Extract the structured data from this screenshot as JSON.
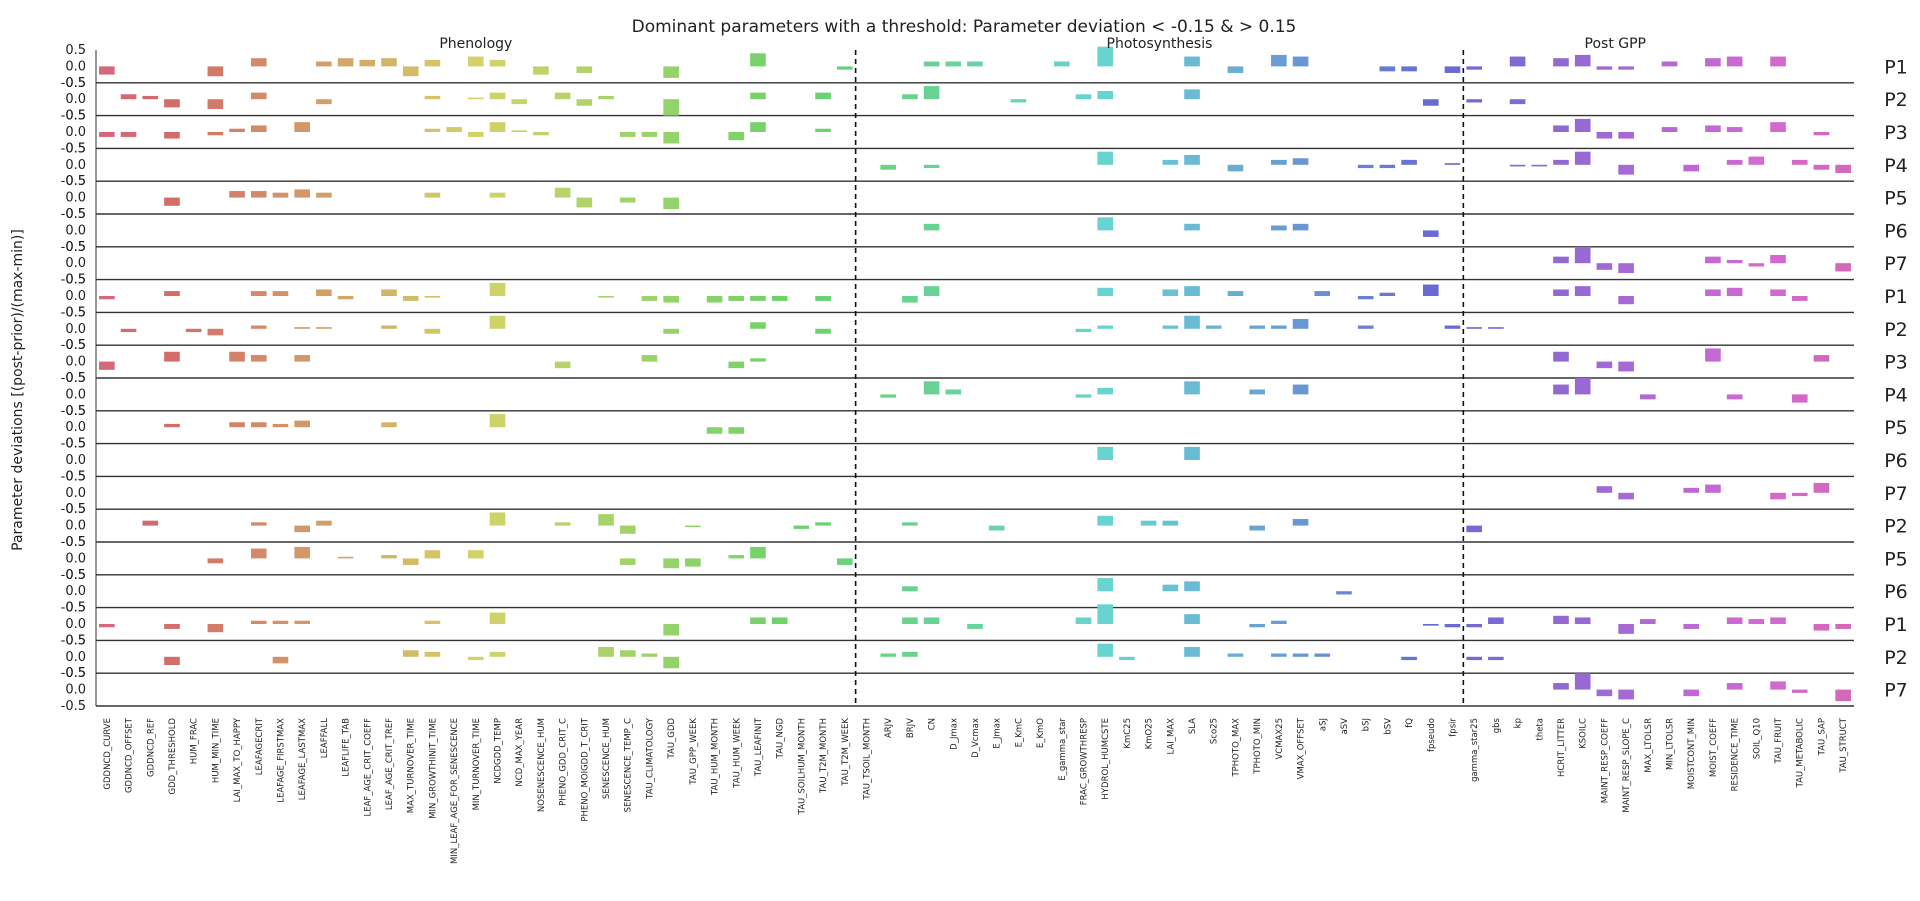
{
  "chart_data": {
    "type": "bar",
    "title": "Dominant parameters with a threshold: Parameter deviation < -0.15 & > 0.15",
    "ylabel": "Parameter deviations [(post-prior)/(max-min)]",
    "xlabel": "",
    "ylim": [
      -0.5,
      0.5
    ],
    "yticks": [
      "0.5",
      "0.0",
      "-0.5"
    ],
    "groups": [
      {
        "name": "Phenology",
        "start": 0,
        "end": 34
      },
      {
        "name": "Photosynthesis",
        "start": 35,
        "end": 62
      },
      {
        "name": "Post GPP",
        "start": 63,
        "end": 76
      }
    ],
    "categories": [
      "GDDNCD_CURVE",
      "GDDNCD_OFFSET",
      "GDDNCD_REF",
      "GDD_THRESHOLD",
      "HUM_FRAC",
      "HUM_MIN_TIME",
      "LAI_MAX_TO_HAPPY",
      "LEAFAGECRIT",
      "LEAFAGE_FIRSTMAX",
      "LEAFAGE_LASTMAX",
      "LEAFFALL",
      "LEAFLIFE_TAB",
      "LEAF_AGE_CRIT_COEFF",
      "LEAF_AGE_CRIT_TREF",
      "MAX_TURNOVER_TIME",
      "MIN_GROWTHINIT_TIME",
      "MIN_LEAF_AGE_FOR_SENESCENCE",
      "MIN_TURNOVER_TIME",
      "NCDGDD_TEMP",
      "NCD_MAX_YEAR",
      "NOSENESCENCE_HUM",
      "PHENO_GDD_CRIT_C",
      "PHENO_MOIGDD_T_CRIT",
      "SENESCENCE_HUM",
      "SENESCENCE_TEMP_C",
      "TAU_CLIMATOLOGY",
      "TAU_GDD",
      "TAU_GPP_WEEK",
      "TAU_HUM_MONTH",
      "TAU_HUM_WEEK",
      "TAU_LEAFINIT",
      "TAU_NGD",
      "TAU_SOILHUM_MONTH",
      "TAU_T2M_MONTH",
      "TAU_T2M_WEEK",
      "TAU_TSOIL_MONTH",
      "ARJV",
      "BRJV",
      "CN",
      "D_Jmax",
      "D_Vcmax",
      "E_Jmax",
      "E_KmC",
      "E_KmO",
      "E_gamma_star",
      "FRAC_GROWTHRESP",
      "HYDROL_HUMCSTE",
      "KmC25",
      "KmO25",
      "LAI_MAX",
      "SLA",
      "Sco25",
      "TPHOTO_MAX",
      "TPHOTO_MIN",
      "VCMAX25",
      "VMAX_OFFSET",
      "aSJ",
      "aSV",
      "bSJ",
      "bSV",
      "fQ",
      "fpseudo",
      "fpsir",
      "gamma_star25",
      "gbs",
      "kp",
      "theta",
      "HCRIT_LITTER",
      "KSOILC",
      "MAINT_RESP_COEFF",
      "MAINT_RESP_SLOPE_C",
      "MAX_LTOLSR",
      "MIN_LTOLSR",
      "MOISTCONT_MIN",
      "MOIST_COEFF",
      "RESIDENCE_TIME",
      "SOIL_Q10",
      "TAU_FRUIT",
      "TAU_METABOLIC",
      "TAU_SAP",
      "TAU_STRUCT"
    ],
    "series": [
      {
        "name": "P1",
        "values": {
          "0": -0.25,
          "5": -0.3,
          "7": 0.25,
          "10": 0.15,
          "11": 0.25,
          "12": 0.2,
          "13": 0.25,
          "14": -0.3,
          "15": 0.2,
          "17": 0.3,
          "18": 0.2,
          "20": -0.25,
          "22": -0.2,
          "26": -0.35,
          "30": 0.4,
          "34": -0.1,
          "38": 0.15,
          "39": 0.15,
          "40": 0.15,
          "44": 0.15,
          "46": 0.6,
          "50": 0.3,
          "52": -0.2,
          "54": 0.35,
          "55": 0.3,
          "59": -0.15,
          "60": -0.15,
          "62": -0.2,
          "63": -0.1,
          "65": 0.3,
          "67": 0.25,
          "68": 0.35,
          "69": -0.1,
          "70": -0.1,
          "72": 0.15,
          "74": 0.25,
          "75": 0.3,
          "77": 0.3
        }
      },
      {
        "name": "P2",
        "values": {
          "1": 0.15,
          "2": 0.1,
          "3": -0.25,
          "5": -0.3,
          "7": 0.2,
          "10": -0.15,
          "15": 0.1,
          "17": 0.05,
          "18": 0.2,
          "19": -0.15,
          "21": 0.2,
          "22": -0.2,
          "23": 0.1,
          "26": -0.5,
          "30": 0.2,
          "33": 0.2,
          "37": 0.15,
          "38": 0.4,
          "42": -0.1,
          "45": 0.15,
          "46": 0.25,
          "50": 0.3,
          "61": -0.2,
          "63": -0.1,
          "65": -0.15
        }
      },
      {
        "name": "P3",
        "values": {
          "0": -0.15,
          "1": -0.15,
          "3": -0.2,
          "5": -0.1,
          "6": 0.1,
          "7": 0.2,
          "9": 0.3,
          "15": 0.1,
          "16": 0.15,
          "17": -0.15,
          "18": 0.3,
          "19": 0.05,
          "20": -0.1,
          "24": -0.15,
          "25": -0.15,
          "26": -0.35,
          "29": -0.25,
          "30": 0.3,
          "33": 0.1,
          "67": 0.2,
          "68": 0.4,
          "69": -0.2,
          "70": -0.2,
          "72": 0.15,
          "74": 0.2,
          "75": 0.15,
          "77": 0.3,
          "79": -0.1
        }
      },
      {
        "name": "P4",
        "values": {
          "36": -0.15,
          "38": -0.1,
          "46": 0.4,
          "49": 0.15,
          "50": 0.3,
          "52": -0.2,
          "54": 0.15,
          "55": 0.2,
          "58": -0.1,
          "59": -0.1,
          "60": 0.15,
          "62": 0.05,
          "65": -0.05,
          "66": -0.05,
          "67": 0.15,
          "68": 0.4,
          "70": -0.3,
          "73": -0.2,
          "75": 0.15,
          "76": 0.25,
          "78": 0.15,
          "79": -0.15,
          "80": -0.25
        }
      },
      {
        "name": "P5",
        "values": {
          "3": -0.25,
          "6": 0.2,
          "7": 0.2,
          "8": 0.15,
          "9": 0.25,
          "10": 0.15,
          "15": 0.15,
          "18": 0.15,
          "21": 0.3,
          "22": -0.3,
          "24": -0.15,
          "26": -0.35
        }
      },
      {
        "name": "P6",
        "values": {
          "38": 0.2,
          "46": 0.4,
          "50": 0.2,
          "54": 0.15,
          "55": 0.2,
          "61": -0.2
        }
      },
      {
        "name": "P7",
        "values": {
          "67": 0.2,
          "68": 0.5,
          "69": -0.2,
          "70": -0.3,
          "74": 0.2,
          "75": 0.1,
          "76": -0.1,
          "77": 0.25,
          "80": -0.25
        }
      },
      {
        "name": "P1",
        "values": {
          "0": -0.1,
          "3": 0.15,
          "7": 0.15,
          "8": 0.15,
          "10": 0.2,
          "11": -0.1,
          "13": 0.2,
          "14": -0.15,
          "15": -0.05,
          "18": 0.4,
          "23": -0.05,
          "25": -0.15,
          "26": -0.2,
          "28": -0.2,
          "29": -0.15,
          "30": -0.15,
          "31": -0.15,
          "33": -0.15,
          "37": -0.2,
          "38": 0.3,
          "46": 0.25,
          "49": 0.2,
          "50": 0.3,
          "52": 0.15,
          "56": 0.15,
          "58": -0.1,
          "59": 0.1,
          "61": 0.35,
          "67": 0.2,
          "68": 0.3,
          "70": -0.25,
          "74": 0.2,
          "75": 0.25,
          "77": 0.2,
          "78": -0.15
        }
      },
      {
        "name": "P2",
        "values": {
          "1": -0.1,
          "4": -0.1,
          "5": -0.2,
          "7": 0.1,
          "9": 0.05,
          "10": 0.05,
          "13": 0.1,
          "15": -0.15,
          "18": 0.4,
          "26": -0.15,
          "30": 0.2,
          "33": -0.15,
          "45": -0.1,
          "46": 0.1,
          "49": 0.1,
          "50": 0.4,
          "51": 0.1,
          "53": 0.1,
          "54": 0.1,
          "55": 0.3,
          "58": 0.1,
          "62": 0.1,
          "63": 0.05,
          "64": 0.05
        }
      },
      {
        "name": "P3",
        "values": {
          "0": -0.25,
          "3": 0.3,
          "6": 0.3,
          "7": 0.2,
          "9": 0.2,
          "21": -0.2,
          "25": 0.2,
          "29": -0.2,
          "30": 0.1,
          "67": 0.3,
          "69": -0.2,
          "70": -0.3,
          "74": 0.4,
          "79": 0.2
        }
      },
      {
        "name": "P4",
        "values": {
          "36": -0.1,
          "38": 0.4,
          "39": 0.15,
          "45": -0.1,
          "46": 0.2,
          "50": 0.4,
          "53": 0.15,
          "55": 0.3,
          "67": 0.3,
          "68": 0.5,
          "71": -0.15,
          "75": -0.15,
          "78": -0.25
        }
      },
      {
        "name": "P5",
        "values": {
          "3": 0.1,
          "6": 0.15,
          "7": 0.15,
          "8": 0.1,
          "9": 0.2,
          "13": 0.15,
          "18": 0.4,
          "28": -0.2,
          "29": -0.2
        }
      },
      {
        "name": "P6",
        "values": {
          "46": 0.4,
          "50": 0.4
        }
      },
      {
        "name": "P7",
        "values": {
          "69": 0.2,
          "70": -0.2,
          "73": 0.15,
          "74": 0.25,
          "77": -0.2,
          "78": -0.1,
          "79": 0.3
        }
      },
      {
        "name": "P2",
        "values": {
          "2": 0.15,
          "7": 0.1,
          "9": -0.2,
          "10": 0.15,
          "18": 0.4,
          "21": 0.1,
          "23": 0.35,
          "24": -0.25,
          "27": 0.0,
          "32": -0.1,
          "33": 0.1,
          "37": 0.1,
          "41": -0.15,
          "46": 0.3,
          "48": 0.15,
          "49": 0.15,
          "53": -0.15,
          "55": 0.2,
          "63": -0.2
        }
      },
      {
        "name": "P5",
        "values": {
          "5": -0.15,
          "7": 0.3,
          "9": 0.35,
          "11": 0.05,
          "13": 0.1,
          "14": -0.2,
          "15": 0.25,
          "17": 0.25,
          "24": -0.2,
          "26": -0.3,
          "27": -0.25,
          "29": 0.1,
          "30": 0.35,
          "34": -0.2
        }
      },
      {
        "name": "P6",
        "values": {
          "37": 0.15,
          "46": 0.4,
          "49": 0.2,
          "50": 0.3,
          "57": -0.1
        }
      },
      {
        "name": "P1",
        "values": {
          "0": -0.1,
          "3": -0.15,
          "5": -0.25,
          "7": 0.1,
          "8": 0.1,
          "9": 0.1,
          "15": 0.1,
          "18": 0.35,
          "26": -0.35,
          "30": 0.2,
          "31": 0.2,
          "37": 0.2,
          "38": 0.2,
          "40": -0.15,
          "45": 0.2,
          "46": 0.6,
          "50": 0.3,
          "53": -0.1,
          "54": 0.1,
          "61": -0.05,
          "62": -0.1,
          "63": -0.1,
          "64": 0.2,
          "67": 0.25,
          "68": 0.2,
          "70": -0.3,
          "71": 0.15,
          "73": -0.15,
          "75": 0.2,
          "76": 0.15,
          "77": 0.2,
          "79": -0.2,
          "80": -0.15
        }
      },
      {
        "name": "P2",
        "values": {
          "3": -0.25,
          "8": -0.2,
          "14": 0.2,
          "15": 0.15,
          "17": -0.1,
          "18": 0.15,
          "23": 0.3,
          "24": 0.2,
          "25": 0.1,
          "26": -0.35,
          "36": 0.1,
          "37": 0.15,
          "46": 0.4,
          "47": -0.1,
          "50": 0.3,
          "52": 0.1,
          "54": 0.1,
          "55": 0.1,
          "56": 0.1,
          "60": -0.1,
          "63": -0.1,
          "64": -0.1
        }
      },
      {
        "name": "P7",
        "values": {
          "67": 0.2,
          "68": 0.5,
          "69": -0.2,
          "70": -0.3,
          "73": -0.2,
          "75": 0.2,
          "77": 0.25,
          "78": -0.1,
          "80": -0.35
        }
      }
    ]
  }
}
